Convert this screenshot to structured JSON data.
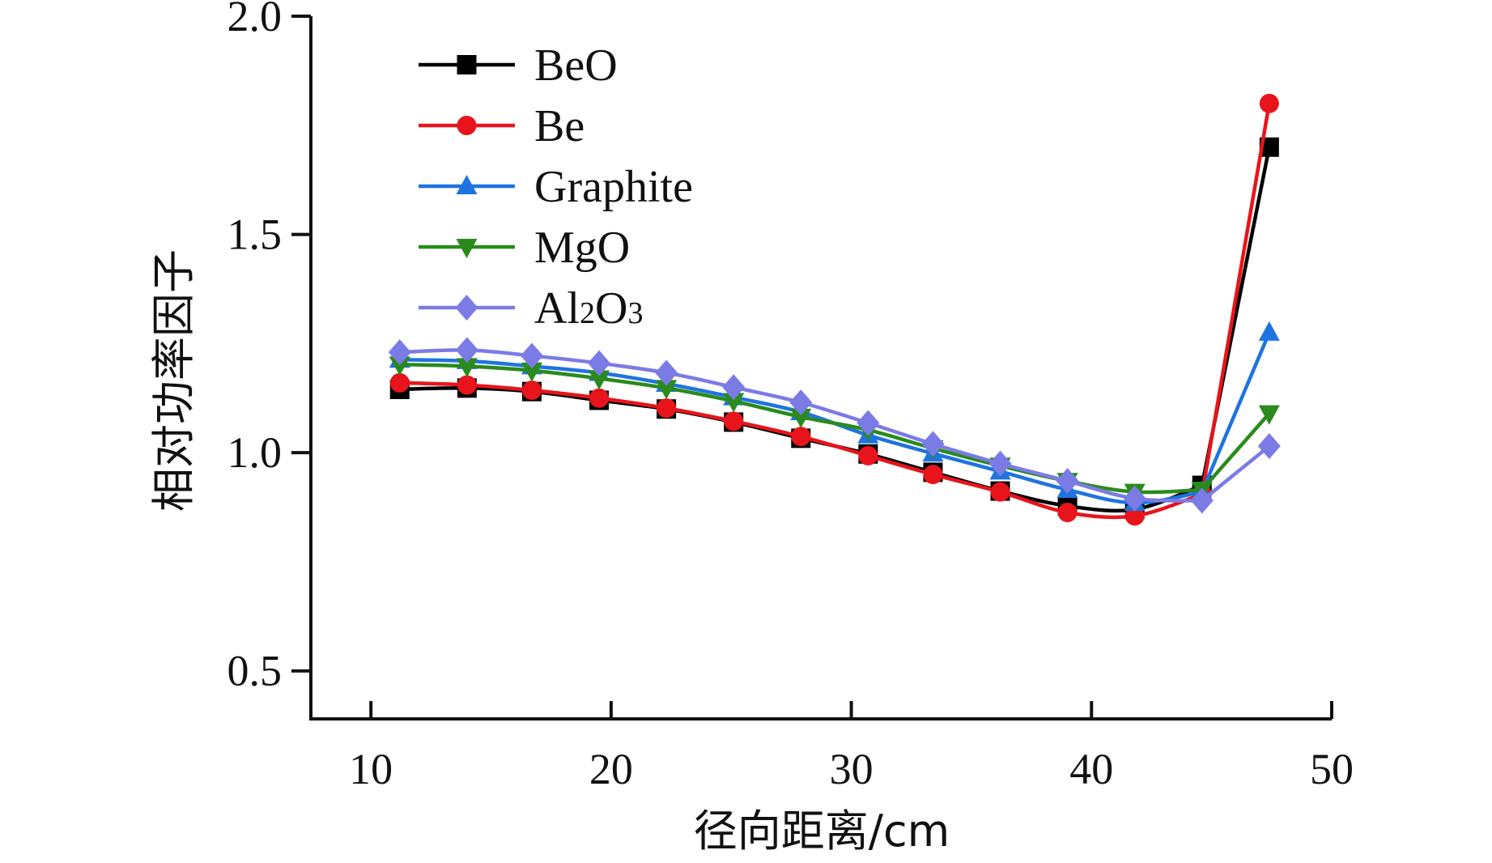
{
  "chart_data": {
    "type": "line",
    "title": "",
    "xlabel": "径向距离/cm",
    "ylabel": "相对功率因子",
    "xlim": [
      7.5,
      50
    ],
    "ylim": [
      0.39,
      2.0
    ],
    "xticks": [
      10,
      20,
      30,
      40,
      50
    ],
    "yticks": [
      0.5,
      1.0,
      1.5,
      2.0
    ],
    "xtick_labels": [
      "10",
      "20",
      "30",
      "40",
      "50"
    ],
    "ytick_labels": [
      "0.5",
      "1.0",
      "1.5",
      "2.0"
    ],
    "grid": false,
    "legend_position": "top-left",
    "x": [
      11.2,
      14.0,
      16.7,
      19.5,
      22.3,
      25.1,
      27.9,
      30.7,
      33.4,
      36.2,
      39.0,
      41.8,
      44.6,
      47.4
    ],
    "series": [
      {
        "name": "BeO",
        "marker": "square",
        "color": "#000000",
        "values": [
          1.145,
          1.148,
          1.14,
          1.12,
          1.1,
          1.07,
          1.033,
          0.997,
          0.955,
          0.912,
          0.878,
          0.87,
          0.925,
          1.7
        ]
      },
      {
        "name": "Be",
        "marker": "circle",
        "color": "#e8141b",
        "values": [
          1.16,
          1.155,
          1.143,
          1.125,
          1.102,
          1.072,
          1.037,
          0.993,
          0.95,
          0.91,
          0.863,
          0.855,
          0.905,
          1.8
        ]
      },
      {
        "name": "Graphite",
        "marker": "triangle-up",
        "color": "#1f73e0",
        "values": [
          1.213,
          1.21,
          1.198,
          1.183,
          1.158,
          1.127,
          1.093,
          1.04,
          0.998,
          0.957,
          0.915,
          0.885,
          0.91,
          1.275
        ]
      },
      {
        "name": "MgO",
        "marker": "triangle-down",
        "color": "#2a8a1c",
        "values": [
          1.202,
          1.198,
          1.188,
          1.17,
          1.148,
          1.118,
          1.082,
          1.052,
          1.01,
          0.97,
          0.935,
          0.91,
          0.915,
          1.09
        ]
      },
      {
        "name": "Al2O3",
        "label_parts": [
          "Al",
          "2",
          "O",
          "3"
        ],
        "marker": "diamond",
        "color": "#7b7be6",
        "values": [
          1.23,
          1.235,
          1.222,
          1.205,
          1.183,
          1.15,
          1.115,
          1.068,
          1.02,
          0.975,
          0.935,
          0.895,
          0.89,
          1.015
        ]
      }
    ]
  }
}
